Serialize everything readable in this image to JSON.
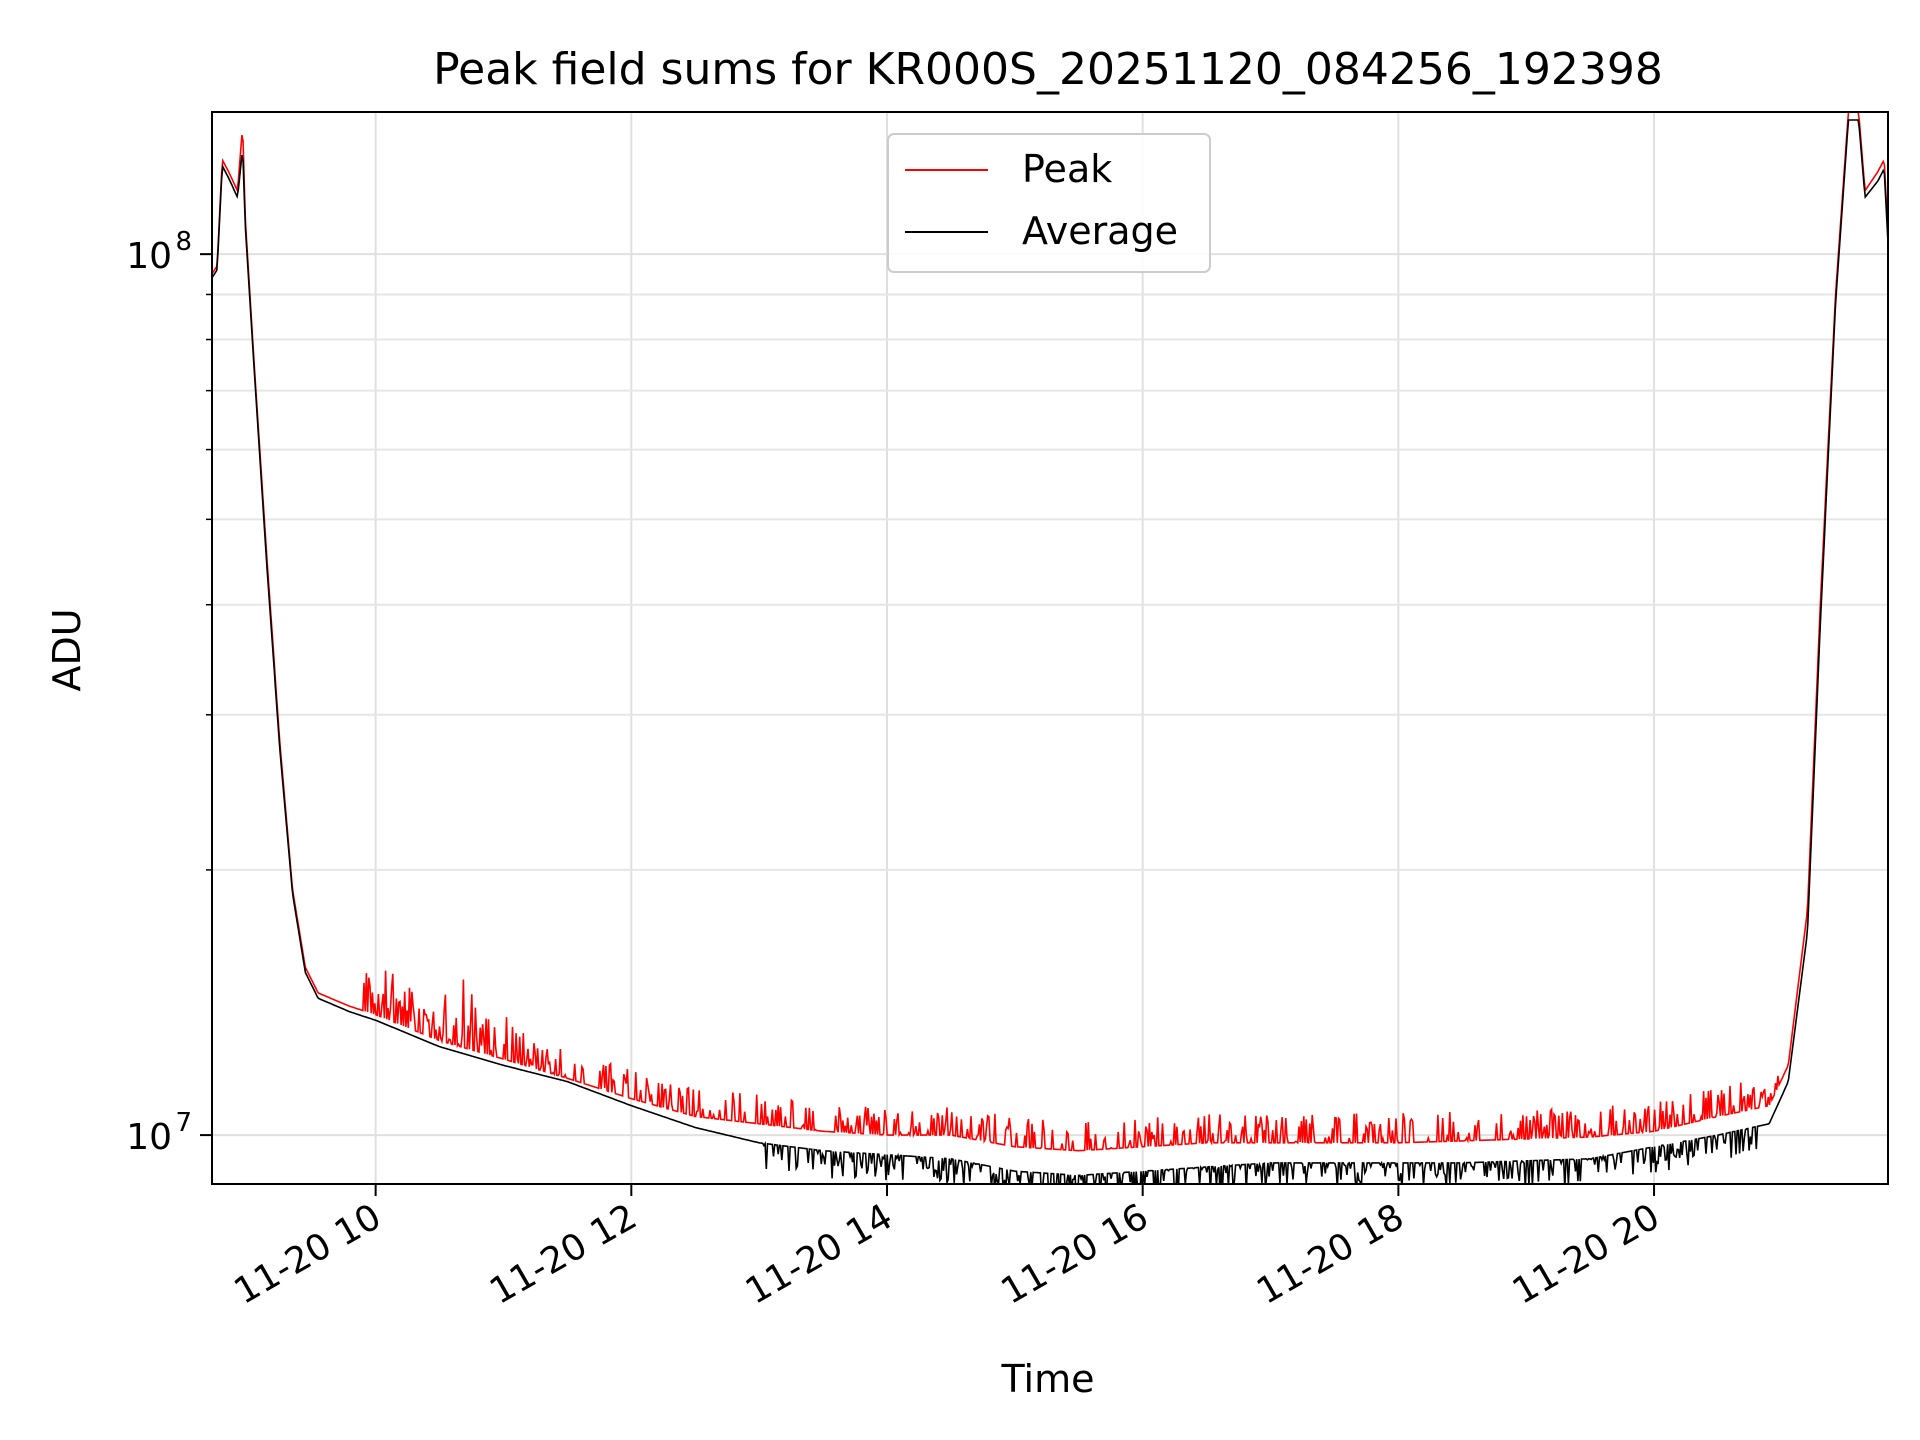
{
  "chart_data": {
    "type": "line",
    "title": "Peak field sums for KR000S_20251120_084256_192398",
    "xlabel": "Time",
    "ylabel": "ADU",
    "yscale": "log",
    "xlim_hours": [
      8.72,
      21.83
    ],
    "ylim": [
      8800000,
      145000000
    ],
    "grid": true,
    "legend_position": "upper center",
    "x_tick_hours": [
      10,
      12,
      14,
      16,
      18,
      20
    ],
    "x_tick_labels": [
      "11-20 10",
      "11-20 12",
      "11-20 14",
      "11-20 16",
      "11-20 18",
      "11-20 20"
    ],
    "y_major_ticks": [
      {
        "value": 10000000,
        "base": "10",
        "exp": "7"
      },
      {
        "value": 100000000,
        "base": "10",
        "exp": "8"
      }
    ],
    "y_minor_ticks": [
      20000000,
      30000000,
      40000000,
      50000000,
      60000000,
      70000000,
      80000000,
      90000000
    ],
    "series": [
      {
        "name": "Peak",
        "color": "#ff0000",
        "points": [
          [
            8.72,
            95000000
          ],
          [
            8.76,
            97000000
          ],
          [
            8.8,
            128000000
          ],
          [
            8.85,
            124000000
          ],
          [
            8.92,
            118000000
          ],
          [
            8.96,
            140000000
          ],
          [
            8.98,
            110000000
          ],
          [
            9.05,
            75000000
          ],
          [
            9.15,
            45000000
          ],
          [
            9.25,
            28000000
          ],
          [
            9.35,
            19000000
          ],
          [
            9.45,
            15500000
          ],
          [
            9.55,
            14500000
          ],
          [
            9.8,
            14000000
          ],
          [
            10.0,
            13700000
          ],
          [
            10.5,
            12800000
          ],
          [
            11.0,
            12200000
          ],
          [
            11.5,
            11600000
          ],
          [
            12.0,
            11000000
          ],
          [
            12.5,
            10500000
          ],
          [
            13.0,
            10300000
          ],
          [
            13.5,
            10100000
          ],
          [
            14.0,
            10000000
          ],
          [
            14.5,
            10000000
          ],
          [
            15.0,
            9700000
          ],
          [
            15.5,
            9600000
          ],
          [
            16.0,
            9700000
          ],
          [
            16.5,
            9800000
          ],
          [
            17.0,
            9800000
          ],
          [
            17.5,
            9800000
          ],
          [
            18.0,
            9800000
          ],
          [
            18.5,
            9850000
          ],
          [
            19.0,
            9900000
          ],
          [
            19.5,
            9950000
          ],
          [
            20.0,
            10100000
          ],
          [
            20.5,
            10500000
          ],
          [
            20.9,
            10800000
          ],
          [
            21.05,
            12000000
          ],
          [
            21.2,
            18000000
          ],
          [
            21.3,
            40000000
          ],
          [
            21.42,
            90000000
          ],
          [
            21.52,
            145000000
          ],
          [
            21.6,
            145000000
          ],
          [
            21.65,
            118000000
          ],
          [
            21.75,
            124000000
          ],
          [
            21.8,
            128000000
          ],
          [
            21.83,
            105000000
          ]
        ],
        "spike_regions": [
          {
            "from_hours": 9.9,
            "to_hours": 21.0,
            "max_factor": 1.08
          },
          {
            "from_hours": 9.9,
            "to_hours": 11.2,
            "max_factor": 1.12
          }
        ]
      },
      {
        "name": "Average",
        "color": "#000000",
        "points": [
          [
            8.72,
            94000000
          ],
          [
            8.76,
            96000000
          ],
          [
            8.8,
            126000000
          ],
          [
            8.85,
            122000000
          ],
          [
            8.92,
            116000000
          ],
          [
            8.96,
            132000000
          ],
          [
            8.98,
            108000000
          ],
          [
            9.05,
            74000000
          ],
          [
            9.15,
            44000000
          ],
          [
            9.25,
            27500000
          ],
          [
            9.35,
            18800000
          ],
          [
            9.45,
            15300000
          ],
          [
            9.55,
            14300000
          ],
          [
            9.8,
            13800000
          ],
          [
            10.0,
            13500000
          ],
          [
            10.5,
            12600000
          ],
          [
            11.0,
            12000000
          ],
          [
            11.5,
            11500000
          ],
          [
            12.0,
            10800000
          ],
          [
            12.5,
            10200000
          ],
          [
            13.0,
            9800000
          ],
          [
            13.5,
            9600000
          ],
          [
            14.0,
            9500000
          ],
          [
            14.5,
            9400000
          ],
          [
            15.0,
            9100000
          ],
          [
            15.5,
            9000000
          ],
          [
            16.0,
            9100000
          ],
          [
            16.5,
            9200000
          ],
          [
            17.0,
            9300000
          ],
          [
            17.5,
            9300000
          ],
          [
            18.0,
            9300000
          ],
          [
            18.5,
            9300000
          ],
          [
            19.0,
            9350000
          ],
          [
            19.5,
            9400000
          ],
          [
            20.0,
            9700000
          ],
          [
            20.5,
            10000000
          ],
          [
            20.9,
            10300000
          ],
          [
            21.05,
            11500000
          ],
          [
            21.2,
            17000000
          ],
          [
            21.3,
            38000000
          ],
          [
            21.42,
            88000000
          ],
          [
            21.52,
            142000000
          ],
          [
            21.6,
            142000000
          ],
          [
            21.65,
            116000000
          ],
          [
            21.75,
            121000000
          ],
          [
            21.8,
            125000000
          ],
          [
            21.83,
            103000000
          ]
        ],
        "dip_regions": [
          {
            "from_hours": 13.0,
            "to_hours": 20.8,
            "min_factor": 0.93
          }
        ]
      }
    ]
  }
}
